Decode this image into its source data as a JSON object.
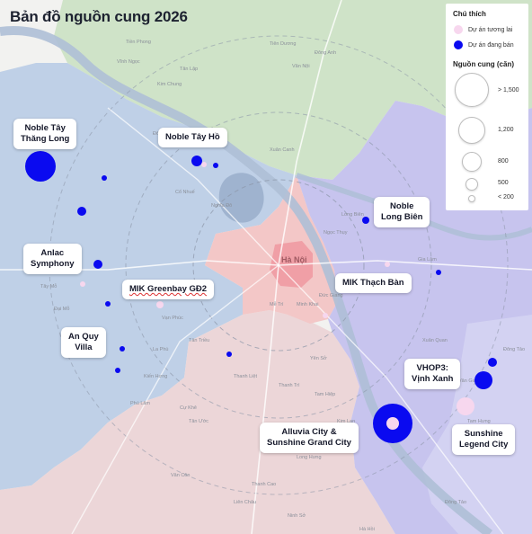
{
  "title": "Bản đồ nguồn cung 2026",
  "legend": {
    "header": "Chú thích",
    "future_label": "Dự án tương lai",
    "selling_label": "Dự án đang bán",
    "size_header": "Nguồn cung (căn)",
    "sizes": [
      "> 1,500",
      "1,200",
      "800",
      "500",
      "< 200"
    ],
    "colors": {
      "future": "#f7d7ee",
      "selling": "#0a0af0"
    }
  },
  "callouts": {
    "noble_tay_thang_long": "Noble Tây\nThăng Long",
    "noble_tay_ho": "Noble Tây Hồ",
    "noble_long_bien": "Noble\nLong Biên",
    "anlac_symphony": "Anlac\nSymphony",
    "mik_greenbay": "MIK Greenbay GĐ2",
    "mik_thach_ban": "MIK Thạch Bàn",
    "an_quy_villa": "An Quy\nVilla",
    "vhop3": "VHOP3:\nVịnh Xanh",
    "alluvia": "Alluvia City &\nSunshine Grand City",
    "sunshine_legend": "Sunshine\nLegend City"
  },
  "map_labels": {
    "hanoi": "Hà Nội",
    "places": [
      "Tiền Phong",
      "Kim Chung",
      "Vĩnh Ngọc",
      "Tiên Dương",
      "Xuân Canh",
      "Đông Anh",
      "Văn Nội",
      "Tân Lập",
      "Long Biên",
      "Gia Lâm",
      "Thạch Bàn",
      "Đông Ngạc",
      "Cổ Nhuế",
      "Nghĩa Đô",
      "Tây Mỗ",
      "Đại Mỗ",
      "Vạn Phúc",
      "An Khánh",
      "La Phù",
      "Kiến Hưng",
      "Thanh Trì",
      "Tân Triều",
      "Văn Giang",
      "Cự Khê",
      "Phú Lãm",
      "Tân Ước",
      "Đông Tảo",
      "Thanh Liệt",
      "Yên Sở",
      "Mễ Trì",
      "Minh Khai",
      "Xuân Quan",
      "Thắng Lợi",
      "Kim Lan",
      "Long Hưng",
      "Đông Tảo",
      "Tam Hưng",
      "Liên Châu",
      "Thanh Cao",
      "Tam Hiệp",
      "Hà Hồi",
      "Ninh Sở",
      "Vân Côn",
      "Đức Giang",
      "Ngọc Thụy"
    ]
  }
}
